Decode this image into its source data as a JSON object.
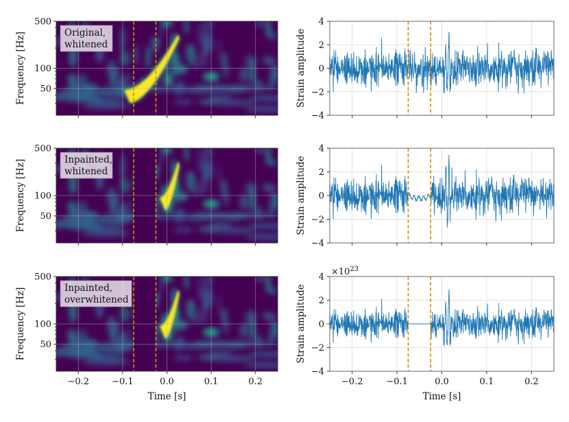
{
  "chart_data": [
    {
      "type": "heatmap",
      "panel": "spectrogram",
      "label": "Original, whitened",
      "ylabel": "Frequency [Hz]",
      "yscale": "log",
      "ylim": [
        20,
        500
      ],
      "xlim": [
        -0.25,
        0.25
      ],
      "yticks": [
        50,
        100,
        500
      ],
      "xticks": [
        -0.2,
        -0.1,
        0.0,
        0.1,
        0.2
      ],
      "xtick_labels": [
        "−0.2",
        "−0.1",
        "0.0",
        "0.1",
        "0.2"
      ],
      "gap_start": -0.075,
      "gap_end": -0.025,
      "gap_masked": false,
      "chirp_start_freq": 38,
      "grid": true,
      "colormap": "viridis"
    },
    {
      "type": "line",
      "panel": "strain",
      "ylabel": "Strain amplitude",
      "ylim": [
        -4,
        4
      ],
      "yticks": [
        -4,
        -2,
        0,
        2,
        4
      ],
      "xlim": [
        -0.25,
        0.25
      ],
      "xticks": [
        -0.2,
        -0.1,
        0.0,
        0.1,
        0.2
      ],
      "xtick_labels": [
        "−0.2",
        "−0.1",
        "0.0",
        "0.1",
        "0.2"
      ],
      "gap_start": -0.075,
      "gap_end": -0.025,
      "gap_mode": "noisy",
      "noise_std": 0.75,
      "peak_time": 0.014,
      "peak_value": 3.0,
      "grid": true,
      "color": "#1f77b4"
    },
    {
      "type": "heatmap",
      "panel": "spectrogram",
      "label": "Inpainted, whitened",
      "ylabel": "Frequency [Hz]",
      "yscale": "log",
      "ylim": [
        20,
        500
      ],
      "xlim": [
        -0.25,
        0.25
      ],
      "yticks": [
        50,
        100,
        500
      ],
      "xticks": [
        -0.2,
        -0.1,
        0.0,
        0.1,
        0.2
      ],
      "xtick_labels": [
        "−0.2",
        "−0.1",
        "0.0",
        "0.1",
        "0.2"
      ],
      "gap_start": -0.075,
      "gap_end": -0.025,
      "gap_masked": true,
      "chirp_start_freq": 75,
      "grid": true,
      "colormap": "viridis"
    },
    {
      "type": "line",
      "panel": "strain",
      "ylabel": "Strain amplitude",
      "ylim": [
        -4,
        4
      ],
      "yticks": [
        -4,
        -2,
        0,
        2,
        4
      ],
      "xlim": [
        -0.25,
        0.25
      ],
      "xticks": [
        -0.2,
        -0.1,
        0.0,
        0.1,
        0.2
      ],
      "xtick_labels": [
        "−0.2",
        "−0.1",
        "0.0",
        "0.1",
        "0.2"
      ],
      "gap_start": -0.075,
      "gap_end": -0.025,
      "gap_mode": "smooth",
      "noise_std": 0.75,
      "peak_time": 0.014,
      "peak_value": 3.0,
      "grid": true,
      "color": "#1f77b4"
    },
    {
      "type": "heatmap",
      "panel": "spectrogram",
      "label": "Inpainted, overwhitened",
      "ylabel": "Frequency [Hz]",
      "yscale": "log",
      "ylim": [
        20,
        500
      ],
      "xlim": [
        -0.25,
        0.25
      ],
      "yticks": [
        50,
        100,
        500
      ],
      "xticks": [
        -0.2,
        -0.1,
        0.0,
        0.1,
        0.2
      ],
      "xtick_labels": [
        "−0.2",
        "−0.1",
        "0.0",
        "0.1",
        "0.2"
      ],
      "xlabel": "Time [s]",
      "gap_start": -0.075,
      "gap_end": -0.025,
      "gap_masked": true,
      "chirp_start_freq": 75,
      "grid": true,
      "colormap": "viridis"
    },
    {
      "type": "line",
      "panel": "strain",
      "ylabel": "Strain amplitude",
      "ylim": [
        -4,
        4
      ],
      "yticks": [
        -4,
        -2,
        0,
        2,
        4
      ],
      "xlim": [
        -0.25,
        0.25
      ],
      "xticks": [
        -0.2,
        -0.1,
        0.0,
        0.1,
        0.2
      ],
      "xtick_labels": [
        "−0.2",
        "−0.1",
        "0.0",
        "0.1",
        "0.2"
      ],
      "xlabel": "Time [s]",
      "scale_note": "×10",
      "scale_exponent": "23",
      "gap_start": -0.075,
      "gap_end": -0.025,
      "gap_mode": "flat",
      "noise_std": 0.6,
      "peak_time": 0.014,
      "peak_value": 3.0,
      "grid": true,
      "color": "#1f77b4"
    }
  ]
}
